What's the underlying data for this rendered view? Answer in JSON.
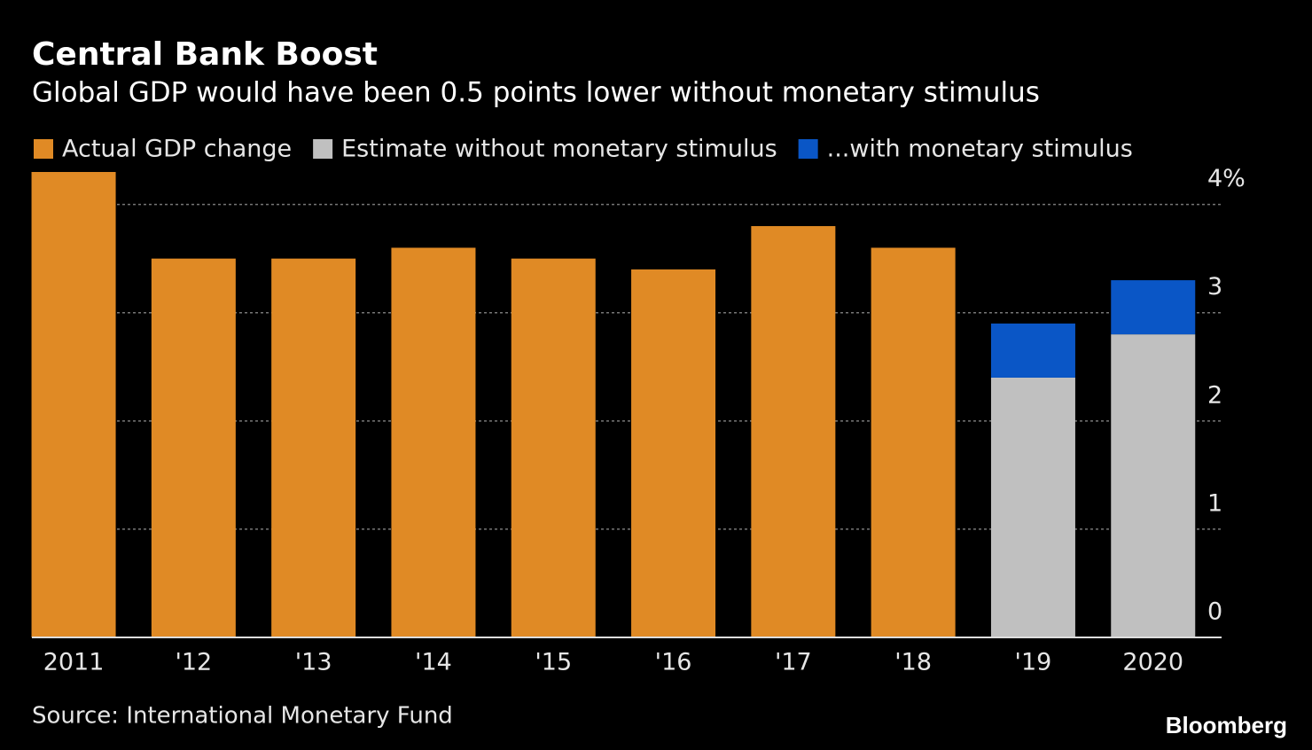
{
  "chart_data": {
    "type": "bar",
    "title": "Central Bank Boost",
    "subtitle": "Global GDP would have been 0.5 points lower without monetary stimulus",
    "categories": [
      "2011",
      "'12",
      "'13",
      "'14",
      "'15",
      "'16",
      "'17",
      "'18",
      "'19",
      "2020"
    ],
    "series": [
      {
        "name": "Actual GDP change",
        "color": "#e08a25",
        "values": [
          4.3,
          3.5,
          3.5,
          3.6,
          3.5,
          3.4,
          3.8,
          3.6,
          null,
          null
        ]
      },
      {
        "name": "Estimate without monetary stimulus",
        "color": "#c0c0c0",
        "values": [
          null,
          null,
          null,
          null,
          null,
          null,
          null,
          null,
          2.4,
          2.8
        ]
      },
      {
        "name": "...with monetary stimulus",
        "color": "#0a56c6",
        "values": [
          null,
          null,
          null,
          null,
          null,
          null,
          null,
          null,
          0.5,
          0.5
        ]
      }
    ],
    "stacked": true,
    "ylim": [
      0,
      4.3
    ],
    "yticks": [
      0,
      1,
      2,
      3,
      {
        "value": 4,
        "label": "4%"
      }
    ],
    "grid": true,
    "source": "Source: International Monetary Fund",
    "brand": "Bloomberg"
  }
}
